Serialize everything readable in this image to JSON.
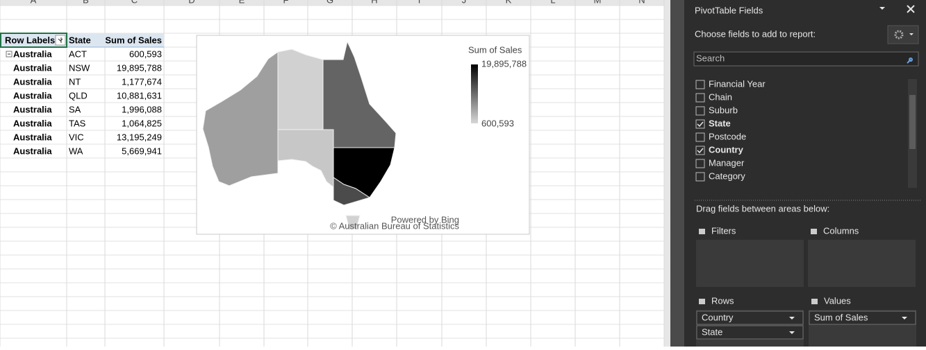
{
  "sheet": {
    "column_headers": [
      "A",
      "B",
      "C",
      "D",
      "E",
      "F",
      "G",
      "H",
      "I",
      "J",
      "K",
      "L",
      "M",
      "N"
    ]
  },
  "pivot_table": {
    "headers": [
      "Row Labels",
      "State",
      "Sum of Sales"
    ],
    "rows": [
      [
        "Australia",
        "ACT",
        "600,593"
      ],
      [
        "Australia",
        "NSW",
        "19,895,788"
      ],
      [
        "Australia",
        "NT",
        "1,177,674"
      ],
      [
        "Australia",
        "QLD",
        "10,881,631"
      ],
      [
        "Australia",
        "SA",
        "1,996,088"
      ],
      [
        "Australia",
        "TAS",
        "1,064,825"
      ],
      [
        "Australia",
        "VIC",
        "13,195,249"
      ],
      [
        "Australia",
        "WA",
        "5,669,941"
      ]
    ]
  },
  "map_chart": {
    "legend_title": "Sum of Sales",
    "legend_max": "19,895,788",
    "legend_min": "600,593",
    "credit_1": "Powered by Bing",
    "credit_2": "© Australian Bureau of Statistics"
  },
  "pane": {
    "title": "PivotTable Fields",
    "prompt": "Choose fields to add to report:",
    "search_placeholder": "Search",
    "fields": [
      {
        "name": "Financial Year",
        "checked": false
      },
      {
        "name": "Chain",
        "checked": false
      },
      {
        "name": "Suburb",
        "checked": false
      },
      {
        "name": "State",
        "checked": true
      },
      {
        "name": "Postcode",
        "checked": false
      },
      {
        "name": "Country",
        "checked": true
      },
      {
        "name": "Manager",
        "checked": false
      },
      {
        "name": "Category",
        "checked": false
      }
    ],
    "drag_prompt": "Drag fields between areas below:",
    "areas": {
      "filters": {
        "label": "Filters",
        "items": []
      },
      "columns": {
        "label": "Columns",
        "items": []
      },
      "rows": {
        "label": "Rows",
        "items": [
          "Country",
          "State"
        ]
      },
      "values": {
        "label": "Values",
        "items": [
          "Sum of Sales"
        ]
      }
    }
  }
}
